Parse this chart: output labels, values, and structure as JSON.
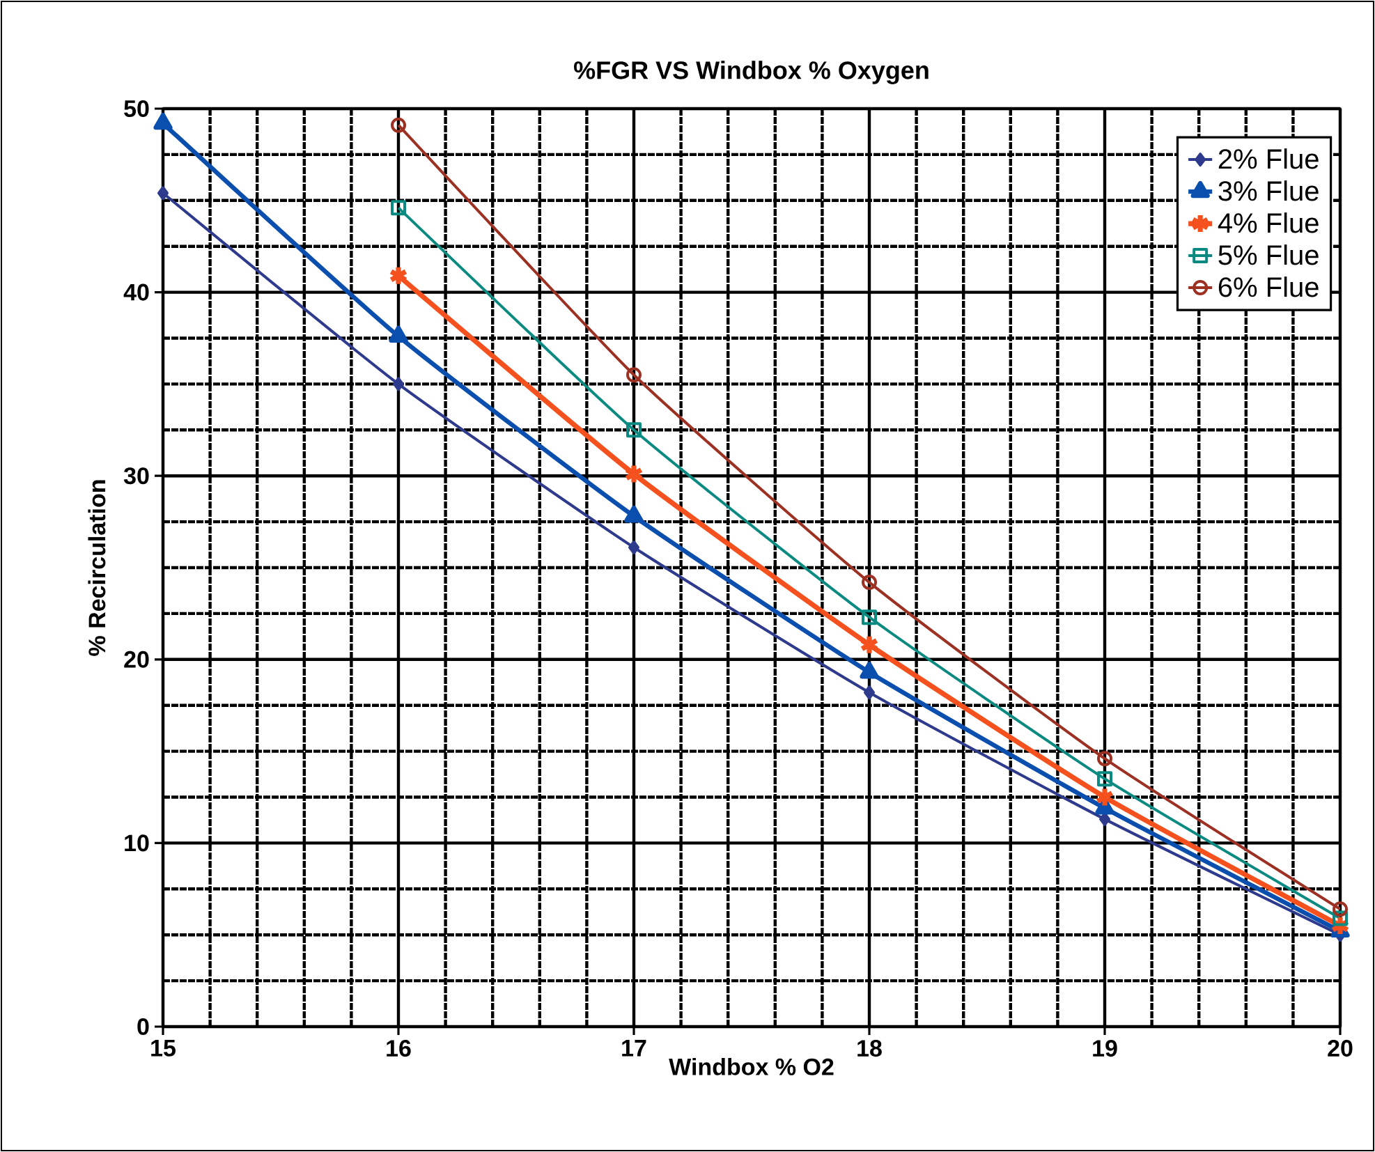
{
  "chart_data": {
    "type": "line",
    "title": "%FGR VS Windbox % Oxygen",
    "xlabel": "Windbox % O2",
    "ylabel": "% Recirculation",
    "x": [
      15,
      16,
      17,
      18,
      19,
      20
    ],
    "series": [
      {
        "name": "2% Flue",
        "color": "#2e3a8c",
        "marker": "diamond",
        "values": [
          45.4,
          35.0,
          26.1,
          18.2,
          11.3,
          5.0
        ]
      },
      {
        "name": "3% Flue",
        "color": "#0b4fae",
        "marker": "triangle",
        "values": [
          49.2,
          37.6,
          27.8,
          19.3,
          11.9,
          5.2
        ]
      },
      {
        "name": "4% Flue",
        "color": "#f4511e",
        "marker": "cross",
        "values": [
          null,
          40.9,
          30.1,
          20.8,
          12.5,
          5.5
        ]
      },
      {
        "name": "5% Flue",
        "color": "#0a8a80",
        "marker": "square",
        "values": [
          null,
          44.6,
          32.5,
          22.3,
          13.5,
          5.9
        ]
      },
      {
        "name": "6% Flue",
        "color": "#9c3022",
        "marker": "circle",
        "values": [
          null,
          49.1,
          35.5,
          24.2,
          14.6,
          6.4
        ]
      }
    ],
    "xlim": [
      15,
      20
    ],
    "xticks": [
      15,
      16,
      17,
      18,
      19,
      20
    ],
    "ylim": [
      0,
      50
    ],
    "yticks": [
      0,
      10,
      20,
      30,
      40,
      50
    ],
    "grid": true,
    "legend": "top right",
    "line_style": "solid"
  }
}
